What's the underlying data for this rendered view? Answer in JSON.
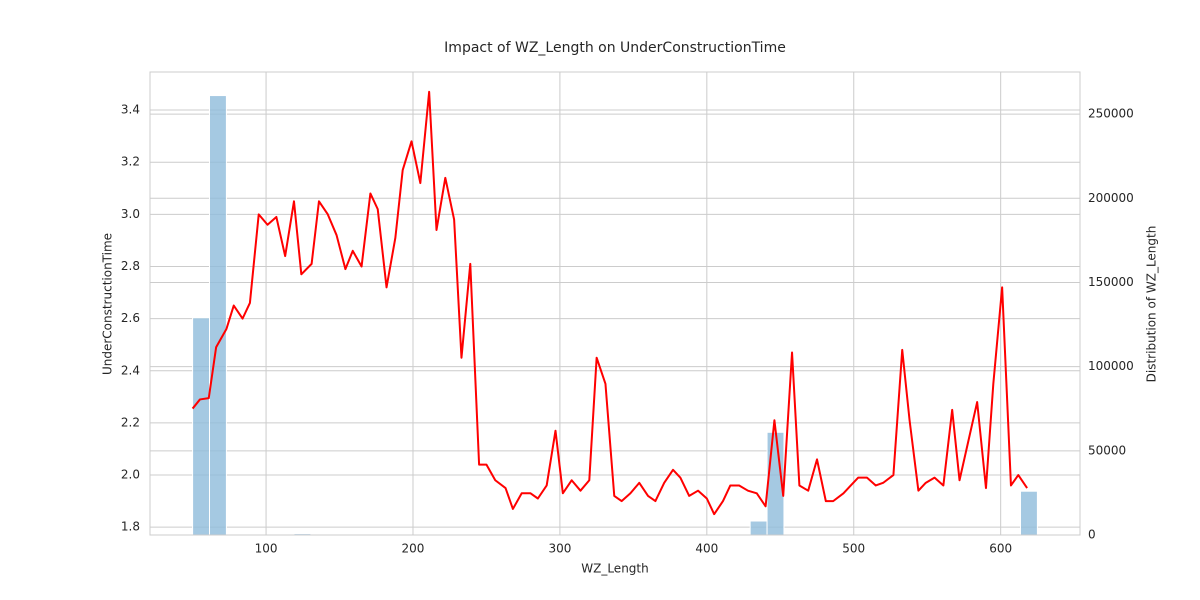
{
  "chart_data": {
    "type": "combo",
    "title": "Impact of WZ_Length on UnderConstructionTime",
    "x_label": "WZ_Length",
    "y_label": "UnderConstructionTime",
    "y2_label": "Distribution of WZ_Length",
    "xlim": [
      21,
      654
    ],
    "xticks": [
      100,
      200,
      300,
      400,
      500,
      600
    ],
    "ylim": [
      1.77,
      3.546
    ],
    "yticks": [
      1.8,
      {
        "value": 2,
        "label": "2.0"
      },
      2.2,
      2.4,
      2.6,
      2.8,
      {
        "value": 3,
        "label": "3.0"
      },
      3.2,
      3.4
    ],
    "y2lim": [
      0,
      275000
    ],
    "y2ticks": [
      0,
      50000,
      100000,
      150000,
      200000,
      250000
    ],
    "grid": true,
    "histogram": {
      "color": "#8fbcdb",
      "axis": "y2",
      "bins": [
        50,
        61.5,
        73,
        84.5,
        96,
        107.5,
        119,
        130.5,
        142,
        153.5,
        165,
        176.5,
        188,
        199.5,
        211,
        222.5,
        234,
        245.5,
        257,
        268.5,
        280,
        291.5,
        303,
        314.5,
        326,
        337.5,
        349,
        360.5,
        372,
        383.5,
        395,
        406.5,
        418,
        429.5,
        441,
        452.5,
        464,
        475.5,
        487,
        498.5,
        510,
        521.5,
        533,
        544.5,
        556,
        567.5,
        579,
        590.5,
        602,
        613.5,
        625
      ],
      "values": [
        129000,
        261000,
        0,
        0,
        0,
        0,
        800,
        0,
        0,
        0,
        0,
        0,
        0,
        0,
        0,
        0,
        0,
        0,
        0,
        0,
        0,
        0,
        0,
        0,
        0,
        0,
        0,
        0,
        0,
        0,
        0,
        0,
        0,
        8300,
        61000,
        0,
        0,
        0,
        0,
        0,
        0,
        0,
        0,
        0,
        0,
        0,
        0,
        0,
        0,
        26000
      ]
    },
    "line": {
      "color": "#ff0000",
      "x": [
        50,
        55,
        61,
        66,
        73,
        78,
        84,
        89,
        95,
        101,
        107,
        113,
        119,
        124,
        131,
        136,
        142,
        148,
        154,
        159,
        165,
        171,
        176,
        182,
        188,
        193,
        199,
        205,
        211,
        216,
        222,
        228,
        233,
        239,
        245,
        250,
        256,
        263,
        268,
        274,
        280,
        285,
        291,
        297,
        302,
        308,
        314,
        320,
        325,
        331,
        337,
        342,
        348,
        354,
        360,
        365,
        371,
        377,
        382,
        388,
        394,
        400,
        405,
        411,
        416,
        422,
        428,
        434,
        440,
        446,
        452,
        458,
        463,
        469,
        475,
        481,
        486,
        493,
        498,
        503,
        509,
        515,
        520,
        527,
        533,
        538,
        544,
        549,
        555,
        561,
        567,
        572,
        578,
        584,
        590,
        595,
        601,
        607,
        612,
        618
      ],
      "values": [
        2.255,
        2.29,
        2.295,
        2.49,
        2.56,
        2.65,
        2.6,
        2.66,
        3.0,
        2.96,
        2.99,
        2.84,
        3.05,
        2.77,
        2.81,
        3.05,
        3.0,
        2.92,
        2.79,
        2.86,
        2.8,
        3.08,
        3.02,
        2.72,
        2.91,
        3.17,
        3.28,
        3.12,
        3.47,
        2.94,
        3.14,
        2.98,
        2.45,
        2.81,
        2.04,
        2.04,
        1.98,
        1.95,
        1.87,
        1.93,
        1.93,
        1.91,
        1.96,
        2.17,
        1.93,
        1.98,
        1.94,
        1.98,
        2.45,
        2.35,
        1.92,
        1.9,
        1.93,
        1.97,
        1.92,
        1.9,
        1.97,
        2.02,
        1.99,
        1.92,
        1.94,
        1.91,
        1.85,
        1.9,
        1.96,
        1.96,
        1.94,
        1.93,
        1.88,
        2.21,
        1.92,
        2.47,
        1.96,
        1.94,
        2.06,
        1.9,
        1.9,
        1.93,
        1.96,
        1.99,
        1.99,
        1.96,
        1.97,
        2.0,
        2.48,
        2.21,
        1.94,
        1.97,
        1.99,
        1.96,
        2.25,
        1.98,
        2.13,
        2.28,
        1.95,
        2.35,
        2.72,
        1.96,
        2.0,
        1.95
      ]
    }
  }
}
